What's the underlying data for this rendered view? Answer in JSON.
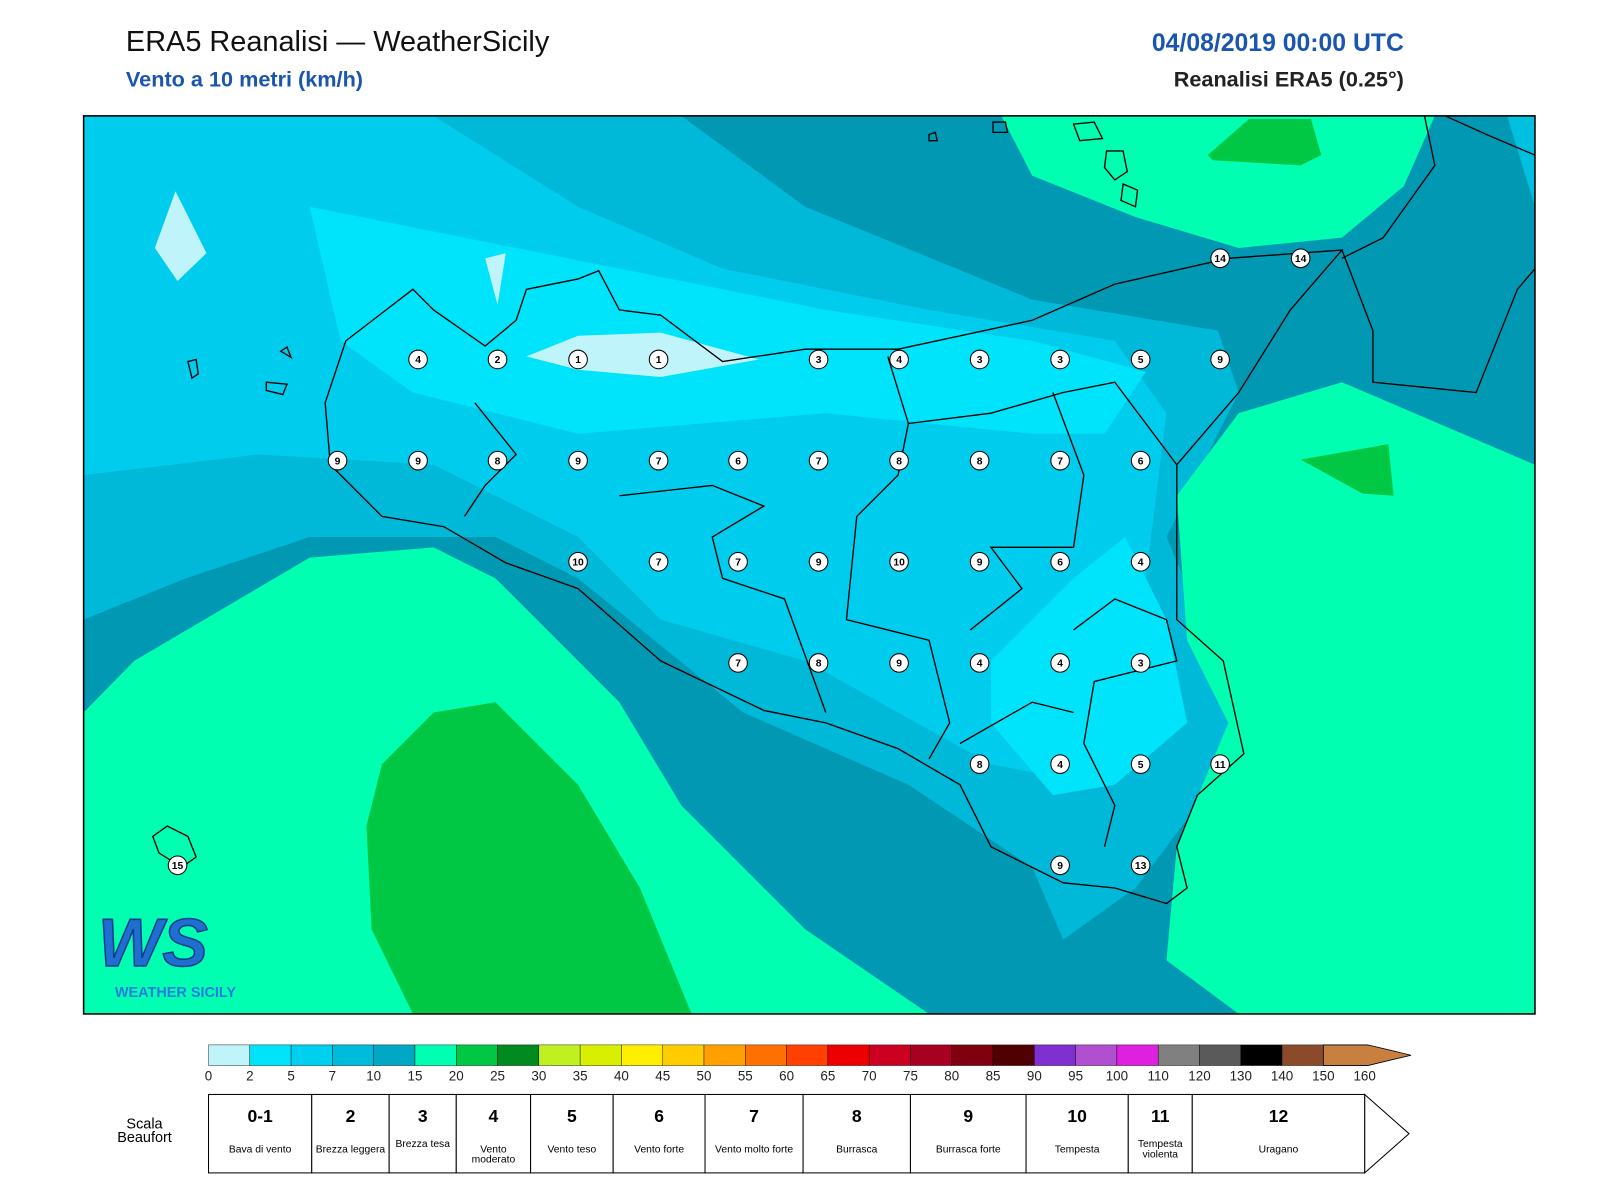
{
  "header": {
    "title": "ERA5 Reanalisi — WeatherSicily",
    "subtitle": "Vento a 10 metri (km/h)",
    "date": "04/08/2019 00:00 UTC",
    "source": "Reanalisi ERA5 (0.25°)"
  },
  "stations": [
    4,
    2,
    1,
    1,
    3,
    4,
    3,
    3,
    5,
    9,
    9,
    9,
    8,
    9,
    7,
    6,
    7,
    8,
    8,
    7,
    6,
    10,
    7,
    7,
    9,
    10,
    9,
    6,
    4,
    7,
    8,
    9,
    4,
    4,
    3,
    8,
    4,
    5,
    11,
    9,
    13,
    14,
    14,
    15
  ],
  "logo": {
    "mark": "WS",
    "text": "WEATHER SICILY"
  },
  "colorbar": {
    "ticks": [
      0,
      2,
      5,
      7,
      10,
      15,
      20,
      25,
      30,
      35,
      40,
      45,
      50,
      55,
      60,
      65,
      70,
      75,
      80,
      85,
      90,
      95,
      100,
      110,
      120,
      130,
      140,
      150,
      160
    ],
    "colors": [
      "#c0f4fb",
      "#00e4fb",
      "#00d0f0",
      "#00bcdc",
      "#00a8c6",
      "#00ffb0",
      "#00c844",
      "#008a20",
      "#c0f020",
      "#d8f000",
      "#ffee00",
      "#ffcc00",
      "#ffa000",
      "#ff7000",
      "#ff4000",
      "#ee0000",
      "#cc0020",
      "#a80020",
      "#800010",
      "#500000",
      "#8030d0",
      "#b050d0",
      "#e020e0",
      "#808080",
      "#5a5a5a",
      "#000000",
      "#8b4a2a",
      "#c88040"
    ]
  },
  "beaufort": {
    "label": "Scala Beaufort",
    "levels": [
      {
        "force": "0-1",
        "description": "Bava di vento"
      },
      {
        "force": 2,
        "description": "Brezza leggera"
      },
      {
        "force": 3,
        "description": "Brezza tesa"
      },
      {
        "force": 4,
        "description": "Vento moderato"
      },
      {
        "force": 5,
        "description": "Vento teso"
      },
      {
        "force": 6,
        "description": "Vento forte"
      },
      {
        "force": 7,
        "description": "Vento molto forte"
      },
      {
        "force": 8,
        "description": "Burrasca"
      },
      {
        "force": 9,
        "description": "Burrasca forte"
      },
      {
        "force": 10,
        "description": "Tempesta"
      },
      {
        "force": 11,
        "description": "Tempesta violenta"
      },
      {
        "force": 12,
        "description": "Uragano"
      }
    ]
  }
}
